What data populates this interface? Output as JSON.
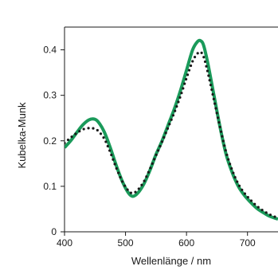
{
  "chart_data": {
    "type": "line",
    "title": "",
    "xlabel": "Wellenlänge / nm",
    "ylabel": "Kubelka-Munk",
    "xlim": [
      400,
      750
    ],
    "ylim": [
      0,
      0.45
    ],
    "xticks": [
      400,
      500,
      600,
      700
    ],
    "yticks": [
      0,
      0.1,
      0.2,
      0.3,
      0.4
    ],
    "xtick_labels": [
      "400",
      "500",
      "600",
      "700"
    ],
    "ytick_labels": [
      "0",
      "0.1",
      "0.2",
      "0.3",
      "0.4"
    ],
    "grid": false,
    "legend": "none",
    "series": [
      {
        "style": "solid",
        "color": "#1a9a5a",
        "x": [
          400,
          410,
          420,
          430,
          440,
          448,
          455,
          465,
          475,
          485,
          495,
          505,
          512,
          520,
          530,
          540,
          550,
          560,
          570,
          580,
          590,
          600,
          610,
          618,
          623,
          628,
          635,
          645,
          655,
          665,
          675,
          685,
          695,
          705,
          715,
          725,
          735,
          745,
          750
        ],
        "y": [
          0.185,
          0.2,
          0.218,
          0.235,
          0.246,
          0.248,
          0.242,
          0.22,
          0.185,
          0.145,
          0.11,
          0.085,
          0.078,
          0.085,
          0.105,
          0.135,
          0.17,
          0.2,
          0.235,
          0.27,
          0.31,
          0.355,
          0.4,
          0.418,
          0.42,
          0.41,
          0.37,
          0.3,
          0.23,
          0.17,
          0.13,
          0.1,
          0.08,
          0.065,
          0.052,
          0.043,
          0.035,
          0.03,
          0.028
        ]
      },
      {
        "style": "dotted",
        "color": "#1a1a1a",
        "x": [
          400,
          410,
          420,
          430,
          440,
          448,
          455,
          465,
          475,
          485,
          495,
          505,
          512,
          520,
          530,
          540,
          550,
          560,
          570,
          580,
          590,
          600,
          610,
          618,
          623,
          628,
          635,
          645,
          655,
          665,
          675,
          685,
          695,
          705,
          715,
          725,
          735,
          745,
          750
        ],
        "y": [
          0.195,
          0.207,
          0.217,
          0.225,
          0.228,
          0.227,
          0.222,
          0.205,
          0.175,
          0.14,
          0.11,
          0.09,
          0.085,
          0.092,
          0.11,
          0.138,
          0.168,
          0.198,
          0.23,
          0.262,
          0.298,
          0.338,
          0.375,
          0.392,
          0.395,
          0.385,
          0.35,
          0.29,
          0.23,
          0.175,
          0.135,
          0.105,
          0.085,
          0.07,
          0.057,
          0.047,
          0.039,
          0.033,
          0.031
        ]
      }
    ]
  }
}
